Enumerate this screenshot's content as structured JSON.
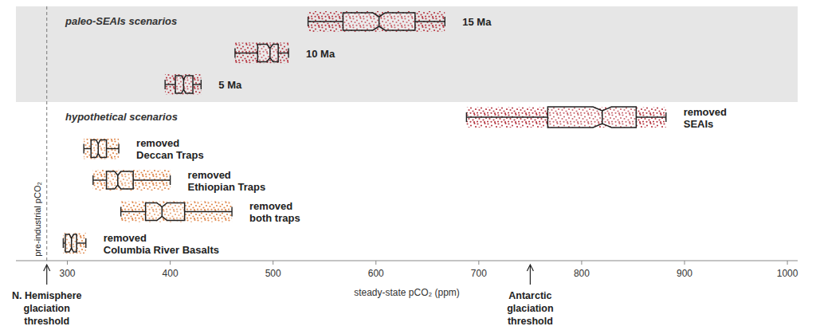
{
  "chart_data": {
    "type": "box",
    "orientation": "horizontal",
    "xlabel": "steady-state pCO₂ (ppm)",
    "xlim": [
      250,
      1010
    ],
    "xticks": [
      300,
      400,
      500,
      600,
      700,
      800,
      900,
      1000
    ],
    "grid": false,
    "groups": [
      {
        "label": "paleo-SEAIs scenarios",
        "series": [
          {
            "name": "15 Ma",
            "color": "#b83c46",
            "whisker_low": 534,
            "q1": 568,
            "median": 603,
            "q3": 638,
            "whisker_high": 667,
            "notch": [
              597,
              609
            ]
          },
          {
            "name": "10 Ma",
            "color": "#b83c46",
            "whisker_low": 463,
            "q1": 485,
            "median": 497,
            "q3": 505,
            "whisker_high": 515,
            "notch": [
              494,
              500
            ]
          },
          {
            "name": "5 Ma",
            "color": "#b83c46",
            "whisker_low": 395,
            "q1": 405,
            "median": 413,
            "q3": 422,
            "whisker_high": 430,
            "notch": [
              411,
              415
            ]
          }
        ]
      },
      {
        "label": "hypothetical scenarios",
        "series": [
          {
            "name": "removed\nSEAIs",
            "color": "#b83c46",
            "whisker_low": 688,
            "q1": 767,
            "median": 820,
            "q3": 853,
            "whisker_high": 882,
            "notch": [
              811,
              829
            ]
          },
          {
            "name": "removed\nDeccan Traps",
            "color": "#e08a4e",
            "whisker_low": 316,
            "q1": 323,
            "median": 330,
            "q3": 338,
            "whisker_high": 350,
            "notch": [
              328,
              332
            ]
          },
          {
            "name": "removed\nEthiopian Traps",
            "color": "#e08a4e",
            "whisker_low": 325,
            "q1": 338,
            "median": 349,
            "q3": 364,
            "whisker_high": 400,
            "notch": [
              346,
              352
            ]
          },
          {
            "name": "removed\nboth traps",
            "color": "#e08a4e",
            "whisker_low": 352,
            "q1": 376,
            "median": 392,
            "q3": 414,
            "whisker_high": 460,
            "notch": [
              387,
              397
            ]
          },
          {
            "name": "removed\nColumbia River Basalts",
            "color": "#e08a4e",
            "whisker_low": 296,
            "q1": 298,
            "median": 304,
            "q3": 309,
            "whisker_high": 318,
            "notch": [
              302,
              306
            ]
          }
        ]
      }
    ],
    "reference_lines": [
      {
        "value": 280,
        "label": "pre-industrial pCO₂",
        "line_style": "dashed"
      }
    ],
    "annotations": [
      {
        "value": 280,
        "label": "N. Hemisphere\nglaciation\nthreshold"
      },
      {
        "value": 750,
        "label": "Antarctic\nglaciation\nthreshold"
      }
    ]
  }
}
